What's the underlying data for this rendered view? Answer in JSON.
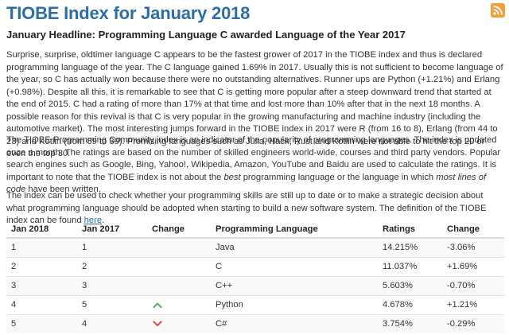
{
  "page": {
    "title": "TIOBE Index for January 2018",
    "rss_icon": "rss-icon",
    "headline": "January Headline: Programming Language C awarded Language of the Year 2017",
    "para1": "Surprise, surprise, oldtimer language C appears to be the fastest grower of 2017 in the TIOBE index and thus is declared programming language of the year. The C language gained 1.69% in 2017. Usually this is not sufficient to become language of the year, so C has actually won because there were no outstanding alternatives. Runner ups are Python (+1.21%) and Erlang (+0.98%). Despite all this, it is remarkable to see that C is getting more popular after a steep downward trend that started at the end of 2015. C had a rating of more than 17% at that time and lost more than 10% after that in the next 18 months. A possible reason for this revival is that C is very popular in the growing manufacturing and machine industry (including the automotive market). The most interesting jumps forward in the TIOBE index in 2017 were R (from 16 to 8), Erlang (from 44 to 23) and Kotlin (from 89 to 39). Promising languages such as Julia, Hack, Rust and Kotlin were not able to hit the top 20 or even the top 30.",
    "para2_a": "The TIOBE Programming Community index is an indicator of the popularity of programming languages. The index is updated once a month. The ratings are based on the number of skilled engineers world-wide, courses and third party vendors. Popular search engines such as Google, Bing, Yahoo!, Wikipedia, Amazon, YouTube and Baidu are used to calculate the ratings. It is important to note that the TIOBE index is not about the ",
    "para2_em1": "best",
    "para2_b": " programming language or the language in which ",
    "para2_em2": "most lines of code",
    "para2_c": " have been written.",
    "para3_a": "The index can be used to check whether your programming skills are still up to date or to make a strategic decision about what programming language should be adopted when starting to build a new software system. The definition of the TIOBE index can be found ",
    "para3_link": "here",
    "para3_end": "."
  },
  "table": {
    "headers": [
      "Jan 2018",
      "Jan 2017",
      "Change",
      "Programming Language",
      "Ratings",
      "Change"
    ],
    "rows": [
      {
        "jan2018": "1",
        "jan2017": "1",
        "change_icon": "",
        "language": "Java",
        "rating": "14.215%",
        "delta": "-3.06%"
      },
      {
        "jan2018": "2",
        "jan2017": "2",
        "change_icon": "",
        "language": "C",
        "rating": "11.037%",
        "delta": "+1.69%"
      },
      {
        "jan2018": "3",
        "jan2017": "3",
        "change_icon": "",
        "language": "C++",
        "rating": "5.603%",
        "delta": "-0.70%"
      },
      {
        "jan2018": "4",
        "jan2017": "5",
        "change_icon": "arrow-up-icon",
        "language": "Python",
        "rating": "4.678%",
        "delta": "+1.21%"
      },
      {
        "jan2018": "5",
        "jan2017": "4",
        "change_icon": "arrow-down-icon",
        "language": "C#",
        "rating": "3.754%",
        "delta": "-0.29%"
      }
    ]
  },
  "colors": {
    "title": "#2b6ea7",
    "link": "#2b6ea7",
    "rss": "#f59c37",
    "up": "#5cb85c",
    "down": "#d9534f"
  }
}
